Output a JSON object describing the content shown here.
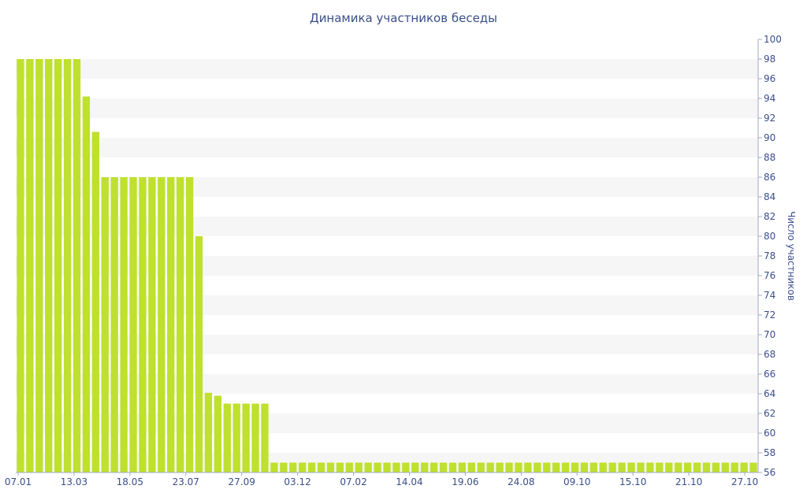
{
  "chart_data": {
    "type": "bar",
    "title": "Динамика участников беседы",
    "xlabel": "",
    "ylabel": "Число участников",
    "ylim": [
      56,
      100
    ],
    "y_ticks": [
      56,
      58,
      60,
      62,
      64,
      66,
      68,
      70,
      72,
      74,
      76,
      78,
      80,
      82,
      84,
      86,
      88,
      90,
      92,
      94,
      96,
      98,
      100
    ],
    "y_axis_side": "right",
    "x_tick_labels": [
      "07.01",
      "13.03",
      "18.05",
      "23.07",
      "27.09",
      "03.12",
      "07.02",
      "14.04",
      "19.06",
      "24.08",
      "09.10",
      "15.10",
      "21.10",
      "27.10"
    ],
    "values": [
      98,
      98,
      98,
      98,
      98,
      98,
      98,
      94.2,
      90.6,
      86,
      86,
      86,
      86,
      86,
      86,
      86,
      86,
      86,
      86,
      80,
      64.1,
      63.8,
      63,
      63,
      63,
      63,
      63,
      57,
      57,
      57,
      57,
      57,
      57,
      57,
      57,
      57,
      57,
      57,
      57,
      57,
      57,
      57,
      57,
      57,
      57,
      57,
      57,
      57,
      57,
      57,
      57,
      57,
      57,
      57,
      57,
      57,
      57,
      57,
      57,
      57,
      57,
      57,
      57,
      57,
      57,
      57,
      57,
      57,
      57,
      57,
      57,
      57,
      57,
      57,
      57,
      57,
      57,
      57,
      57
    ],
    "grid": "alternating horizontal bands",
    "legend": "none",
    "colors": {
      "bar": "#bfe02d",
      "band": "#f6f6f6",
      "text": "#3a4f8c"
    }
  }
}
